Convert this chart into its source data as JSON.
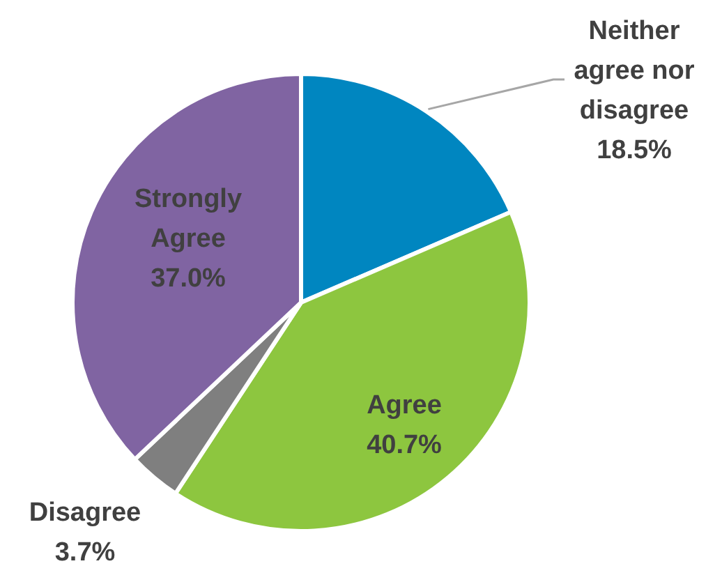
{
  "chart_data": {
    "type": "pie",
    "categories": [
      "Neither agree nor disagree",
      "Agree",
      "Disagree",
      "Strongly Agree"
    ],
    "values": [
      18.5,
      40.7,
      3.7,
      37.0
    ],
    "value_labels": [
      "18.5%",
      "40.7%",
      "3.7%",
      "37.0%"
    ],
    "colors": [
      "#0086c0",
      "#8dc63f",
      "#7f7f7f",
      "#8064a2"
    ]
  }
}
